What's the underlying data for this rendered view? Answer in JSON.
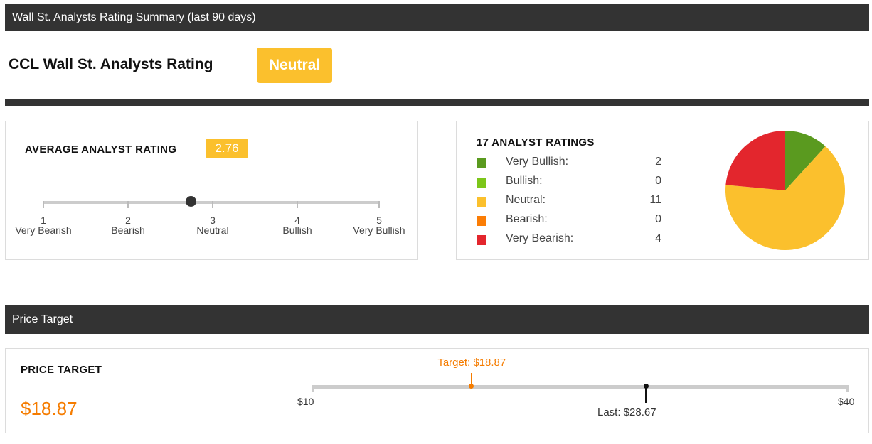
{
  "summary": {
    "section_title": "Wall St. Analysts Rating Summary (last 90 days)",
    "rating_title": "CCL Wall St. Analysts Rating",
    "rating_badge": "Neutral",
    "badge_color": "#fbc02d"
  },
  "average": {
    "heading": "AVERAGE ANALYST RATING",
    "value": "2.76",
    "scale": [
      {
        "num": "1",
        "label": "Very Bearish"
      },
      {
        "num": "2",
        "label": "Bearish"
      },
      {
        "num": "3",
        "label": "Neutral"
      },
      {
        "num": "4",
        "label": "Bullish"
      },
      {
        "num": "5",
        "label": "Very Bullish"
      }
    ],
    "min": 1,
    "max": 5,
    "marker_value": 2.76
  },
  "distribution": {
    "heading": "17 ANALYST RATINGS",
    "rows": [
      {
        "label": "Very Bullish:",
        "count": "2",
        "color": "#5a9a1f"
      },
      {
        "label": "Bullish:",
        "count": "0",
        "color": "#7cc61a"
      },
      {
        "label": "Neutral:",
        "count": "11",
        "color": "#fbc02d"
      },
      {
        "label": "Bearish:",
        "count": "0",
        "color": "#fb7d05"
      },
      {
        "label": "Very Bearish:",
        "count": "4",
        "color": "#e3262d"
      }
    ]
  },
  "chart_data": {
    "type": "pie",
    "categories": [
      "Very Bullish",
      "Bullish",
      "Neutral",
      "Bearish",
      "Very Bearish"
    ],
    "values": [
      2,
      0,
      11,
      0,
      4
    ],
    "colors": [
      "#5a9a1f",
      "#7cc61a",
      "#fbc02d",
      "#fb7d05",
      "#e3262d"
    ]
  },
  "price_target": {
    "section_title": "Price Target",
    "heading": "PRICE TARGET",
    "value_display": "$18.87",
    "min_label": "$10",
    "max_label": "$40",
    "min": 10,
    "max": 40,
    "target": 18.87,
    "target_label": "Target: $18.87",
    "last": 28.67,
    "last_label": "Last: $28.67",
    "target_color": "#f57c00"
  }
}
